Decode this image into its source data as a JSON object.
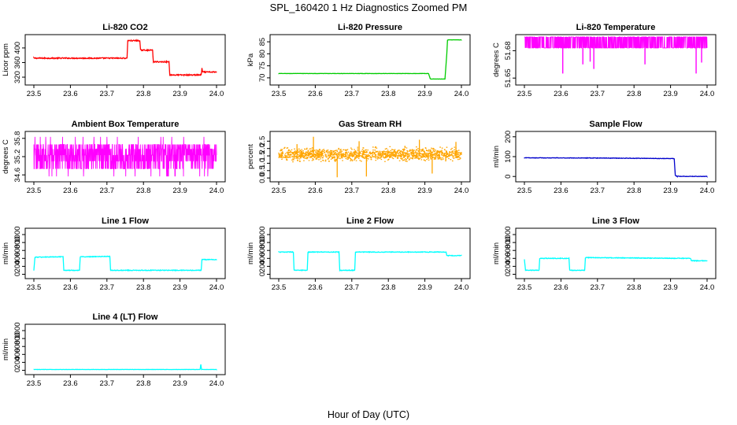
{
  "figure": {
    "title": "SPL_160420  1 Hz Diagnostics Zoomed PM",
    "xlabel": "Hour of Day (UTC)"
  },
  "chart_data": [
    {
      "type": "line",
      "title": "Li-820 CO2",
      "ylabel": "Licor ppm",
      "color": "#ff0000",
      "xlim": [
        23.5,
        24.0
      ],
      "ylim": [
        305,
        430
      ],
      "xticks": [
        "23.5",
        "23.6",
        "23.7",
        "23.8",
        "23.9",
        "24.0"
      ],
      "yticks": [
        {
          "v": 320,
          "label": "320"
        },
        {
          "v": 360,
          "label": "360"
        },
        {
          "v": 400,
          "label": "400"
        }
      ],
      "noise": 1.5,
      "points": [
        [
          23.5,
          372
        ],
        [
          23.755,
          372
        ],
        [
          23.757,
          420
        ],
        [
          23.79,
          420
        ],
        [
          23.792,
          394
        ],
        [
          23.825,
          394
        ],
        [
          23.827,
          362
        ],
        [
          23.87,
          362
        ],
        [
          23.872,
          326
        ],
        [
          23.958,
          326
        ],
        [
          23.96,
          344
        ],
        [
          23.962,
          334
        ],
        [
          24.0,
          334
        ]
      ]
    },
    {
      "type": "line",
      "title": "Li-820 Pressure",
      "ylabel": "kPa",
      "color": "#00cc00",
      "xlim": [
        23.5,
        24.0
      ],
      "ylim": [
        68,
        87
      ],
      "xticks": [
        "23.5",
        "23.6",
        "23.7",
        "23.8",
        "23.9",
        "24.0"
      ],
      "yticks": [
        {
          "v": 70,
          "label": "70"
        },
        {
          "v": 75,
          "label": "75"
        },
        {
          "v": 80,
          "label": "80"
        },
        {
          "v": 85,
          "label": "85"
        }
      ],
      "noise": 0.05,
      "points": [
        [
          23.5,
          71.8
        ],
        [
          23.91,
          71.8
        ],
        [
          23.915,
          69.5
        ],
        [
          23.955,
          69.5
        ],
        [
          23.96,
          80
        ],
        [
          23.962,
          85.8
        ],
        [
          24.0,
          85.8
        ]
      ]
    },
    {
      "type": "line",
      "title": "Li-820 Temperature",
      "ylabel": "degrees C",
      "color": "#ff00ff",
      "xlim": [
        23.5,
        24.0
      ],
      "ylim": [
        51.645,
        51.695
      ],
      "xticks": [
        "23.5",
        "23.6",
        "23.7",
        "23.8",
        "23.9",
        "24.0"
      ],
      "yticks": [
        {
          "v": 51.65,
          "label": "51.65"
        },
        {
          "v": 51.68,
          "label": "51.68"
        }
      ],
      "levels": [
        51.683,
        51.695
      ],
      "spikes": [
        [
          23.605,
          51.655
        ],
        [
          23.66,
          51.665
        ],
        [
          23.68,
          51.668
        ],
        [
          23.69,
          51.66
        ],
        [
          23.83,
          51.665
        ],
        [
          23.97,
          51.655
        ],
        [
          23.985,
          51.667
        ]
      ],
      "n": 900
    },
    {
      "type": "line",
      "title": "Ambient Box Temperature",
      "ylabel": "degrees C",
      "color": "#ff00ff",
      "xlim": [
        23.5,
        24.0
      ],
      "ylim": [
        34.45,
        35.95
      ],
      "xticks": [
        "23.5",
        "23.6",
        "23.7",
        "23.8",
        "23.9",
        "24.0"
      ],
      "yticks": [
        {
          "v": 34.6,
          "label": "34.6"
        },
        {
          "v": 35.2,
          "label": "35.2"
        },
        {
          "v": 35.8,
          "label": "35.8"
        }
      ],
      "levels": [
        34.8,
        35.05,
        35.25,
        35.45,
        35.6
      ],
      "extremes": [
        34.55,
        35.85
      ],
      "n": 1000
    },
    {
      "type": "scatter",
      "title": "Gas Stream RH",
      "ylabel": "percent",
      "color": "#ffa500",
      "xlim": [
        23.5,
        24.0
      ],
      "ylim": [
        -0.1,
        3.0
      ],
      "xticks": [
        "23.5",
        "23.6",
        "23.7",
        "23.8",
        "23.9",
        "24.0"
      ],
      "yticks": [
        {
          "v": 0.0,
          "label": "0.0"
        },
        {
          "v": 0.5,
          "label": "0.5"
        },
        {
          "v": 1.0,
          "label": "1.0"
        },
        {
          "v": 1.5,
          "label": "1.5"
        },
        {
          "v": 2.0,
          "label": "2.0"
        },
        {
          "v": 2.5,
          "label": "2.5"
        }
      ],
      "center": 1.6,
      "spread": 0.3,
      "outliers": [
        [
          23.595,
          2.8
        ],
        [
          23.66,
          0.05
        ],
        [
          23.74,
          0.1
        ],
        [
          23.92,
          0.3
        ],
        [
          23.885,
          2.6
        ],
        [
          23.985,
          2.45
        ],
        [
          23.55,
          2.3
        ],
        [
          23.72,
          2.5
        ]
      ],
      "n": 1400
    },
    {
      "type": "line",
      "title": "Sample Flow",
      "ylabel": "ml/min",
      "color": "#0000cc",
      "xlim": [
        23.5,
        24.0
      ],
      "ylim": [
        -15,
        215
      ],
      "xticks": [
        "23.5",
        "23.6",
        "23.7",
        "23.8",
        "23.9",
        "24.0"
      ],
      "yticks": [
        {
          "v": 0,
          "label": "0"
        },
        {
          "v": 100,
          "label": "100"
        },
        {
          "v": 200,
          "label": "200"
        }
      ],
      "noise": 1.2,
      "points": [
        [
          23.5,
          94
        ],
        [
          23.7,
          93
        ],
        [
          23.91,
          90
        ],
        [
          23.913,
          5
        ],
        [
          23.918,
          1
        ],
        [
          24.0,
          0
        ]
      ]
    },
    {
      "type": "line",
      "title": "Line 1 Flow",
      "ylabel": "ml/min",
      "color": "#00ffff",
      "xlim": [
        23.5,
        24.0
      ],
      "ylim": [
        -50,
        1100
      ],
      "xticks": [
        "23.5",
        "23.6",
        "23.7",
        "23.8",
        "23.9",
        "24.0"
      ],
      "yticks": [
        {
          "v": 0,
          "label": "0"
        },
        {
          "v": 200,
          "label": "200"
        },
        {
          "v": 400,
          "label": "400"
        },
        {
          "v": 600,
          "label": "600"
        },
        {
          "v": 800,
          "label": "800"
        },
        {
          "v": 1000,
          "label": "1000"
        }
      ],
      "noise": 8,
      "points": [
        [
          23.5,
          100
        ],
        [
          23.503,
          430
        ],
        [
          23.58,
          440
        ],
        [
          23.582,
          100
        ],
        [
          23.625,
          100
        ],
        [
          23.627,
          440
        ],
        [
          23.708,
          450
        ],
        [
          23.71,
          100
        ],
        [
          23.958,
          100
        ],
        [
          23.96,
          370
        ],
        [
          24.0,
          370
        ]
      ]
    },
    {
      "type": "line",
      "title": "Line 2 Flow",
      "ylabel": "ml/min",
      "color": "#00ffff",
      "xlim": [
        23.5,
        24.0
      ],
      "ylim": [
        -50,
        1100
      ],
      "xticks": [
        "23.5",
        "23.6",
        "23.7",
        "23.8",
        "23.9",
        "24.0"
      ],
      "yticks": [
        {
          "v": 0,
          "label": "0"
        },
        {
          "v": 200,
          "label": "200"
        },
        {
          "v": 400,
          "label": "400"
        },
        {
          "v": 600,
          "label": "600"
        },
        {
          "v": 800,
          "label": "800"
        },
        {
          "v": 1000,
          "label": "1000"
        }
      ],
      "noise": 8,
      "points": [
        [
          23.5,
          560
        ],
        [
          23.54,
          560
        ],
        [
          23.542,
          100
        ],
        [
          23.578,
          100
        ],
        [
          23.58,
          560
        ],
        [
          23.665,
          560
        ],
        [
          23.667,
          100
        ],
        [
          23.708,
          100
        ],
        [
          23.71,
          560
        ],
        [
          23.958,
          560
        ],
        [
          23.96,
          470
        ],
        [
          24.0,
          470
        ]
      ]
    },
    {
      "type": "line",
      "title": "Line 3 Flow",
      "ylabel": "ml/min",
      "color": "#00ffff",
      "xlim": [
        23.5,
        24.0
      ],
      "ylim": [
        -50,
        1100
      ],
      "xticks": [
        "23.5",
        "23.6",
        "23.7",
        "23.8",
        "23.9",
        "24.0"
      ],
      "yticks": [
        {
          "v": 0,
          "label": "0"
        },
        {
          "v": 200,
          "label": "200"
        },
        {
          "v": 400,
          "label": "400"
        },
        {
          "v": 600,
          "label": "600"
        },
        {
          "v": 800,
          "label": "800"
        },
        {
          "v": 1000,
          "label": "1000"
        }
      ],
      "noise": 8,
      "points": [
        [
          23.5,
          380
        ],
        [
          23.503,
          100
        ],
        [
          23.54,
          100
        ],
        [
          23.542,
          400
        ],
        [
          23.622,
          400
        ],
        [
          23.624,
          100
        ],
        [
          23.665,
          100
        ],
        [
          23.667,
          420
        ],
        [
          23.955,
          400
        ],
        [
          23.957,
          340
        ],
        [
          24.0,
          340
        ]
      ]
    },
    {
      "type": "line",
      "title": "Line 4 (LT) Flow",
      "ylabel": "ml/min",
      "color": "#00ffff",
      "xlim": [
        23.5,
        24.0
      ],
      "ylim": [
        -50,
        1100
      ],
      "xticks": [
        "23.5",
        "23.6",
        "23.7",
        "23.8",
        "23.9",
        "24.0"
      ],
      "yticks": [
        {
          "v": 0,
          "label": "0"
        },
        {
          "v": 200,
          "label": "200"
        },
        {
          "v": 400,
          "label": "400"
        },
        {
          "v": 600,
          "label": "600"
        },
        {
          "v": 800,
          "label": "800"
        },
        {
          "v": 1000,
          "label": "1000"
        }
      ],
      "noise": 3,
      "points": [
        [
          23.5,
          20
        ],
        [
          23.955,
          20
        ],
        [
          23.957,
          150
        ],
        [
          23.959,
          20
        ],
        [
          24.0,
          20
        ]
      ]
    }
  ]
}
